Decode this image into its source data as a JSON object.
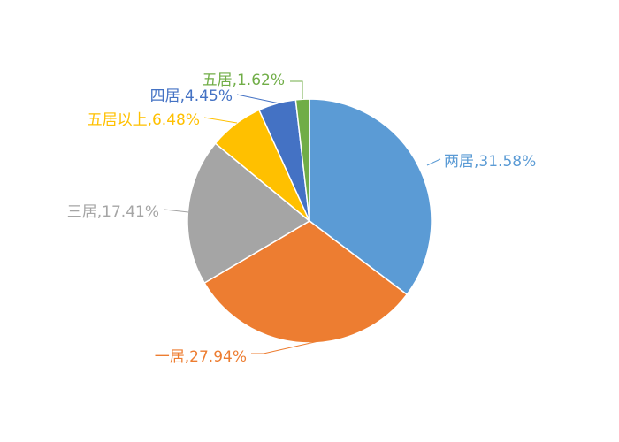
{
  "chart_data": {
    "type": "pie",
    "start_angle_deg": 0,
    "direction": "clockwise",
    "slices": [
      {
        "category": "两居",
        "percent": "31.58%",
        "value": 31.58,
        "color": "#5B9BD5",
        "label": "两居,31.58%"
      },
      {
        "category": "一居",
        "percent": "27.94%",
        "value": 27.94,
        "color": "#ED7D31",
        "label": "一居,27.94%"
      },
      {
        "category": "三居",
        "percent": "17.41%",
        "value": 17.41,
        "color": "#A5A5A5",
        "label": "三居,17.41%"
      },
      {
        "category": "五居以上",
        "percent": "6.48%",
        "value": 6.48,
        "color": "#FFC000",
        "label": "五居以上,6.48%"
      },
      {
        "category": "四居",
        "percent": "4.45%",
        "value": 4.45,
        "color": "#4472C4",
        "label": "四居,4.45%"
      },
      {
        "category": "五居",
        "percent": "1.62%",
        "value": 1.62,
        "color": "#70AD47",
        "label": "五居,1.62%"
      }
    ],
    "legend": "none",
    "title": ""
  }
}
